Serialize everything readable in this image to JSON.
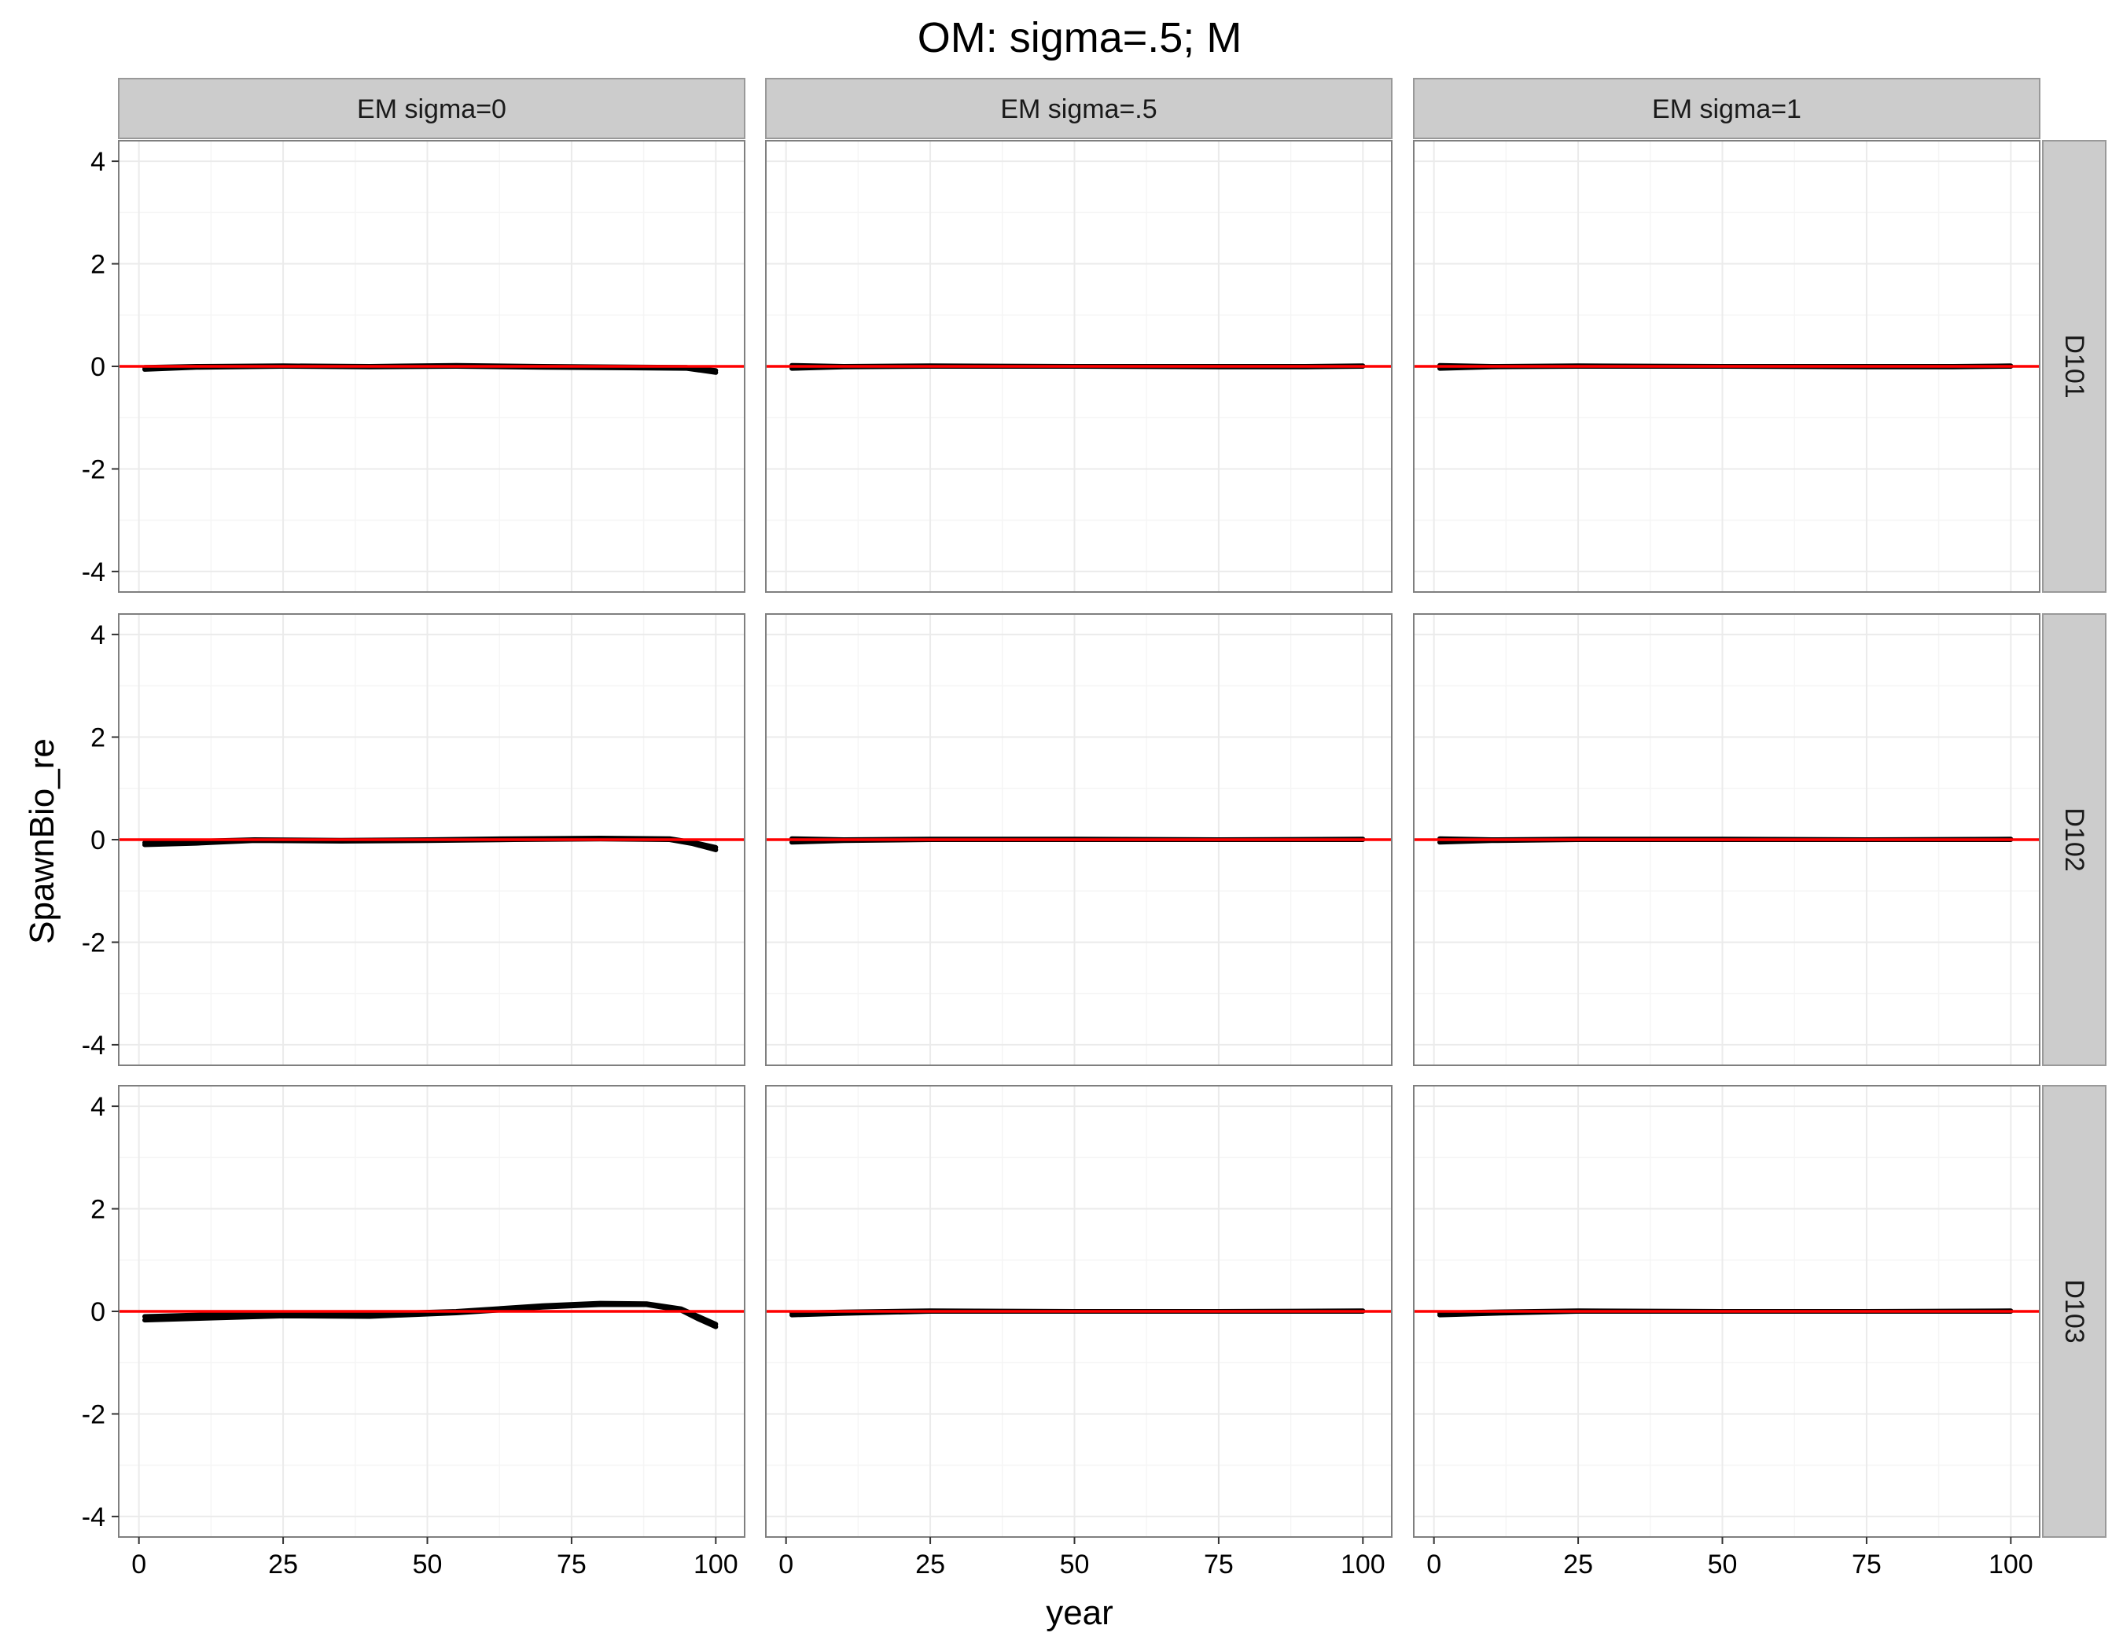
{
  "chart_data": {
    "type": "line",
    "title": "OM: sigma=.5; M",
    "xlabel": "year",
    "ylabel": "SpawnBio_re",
    "xlim": [
      -3.5,
      105
    ],
    "ylim": [
      -4.4,
      4.4
    ],
    "x_ticks": [
      0,
      25,
      50,
      75,
      100
    ],
    "y_ticks": [
      -4,
      -2,
      0,
      2,
      4
    ],
    "x_tick_labels": [
      "0",
      "25",
      "50",
      "75",
      "100"
    ],
    "y_tick_labels": [
      "-4",
      "-2",
      "0",
      "2",
      "4"
    ],
    "col_facets": [
      "EM sigma=0",
      "EM sigma=.5",
      "EM sigma=1"
    ],
    "row_facets": [
      "D101",
      "D102",
      "D103"
    ],
    "grid": true,
    "reference_line": {
      "y": 0,
      "color": "#ff0000"
    },
    "series_color": "#000000",
    "panels": [
      {
        "row": "D101",
        "col": "EM sigma=0",
        "lines": [
          {
            "x": [
              1,
              10,
              25,
              40,
              55,
              70,
              85,
              95,
              100
            ],
            "y": [
              -0.06,
              -0.02,
              0.0,
              -0.01,
              0.0,
              -0.02,
              -0.03,
              -0.04,
              -0.12
            ]
          },
          {
            "x": [
              1,
              10,
              25,
              40,
              55,
              70,
              85,
              95,
              100
            ],
            "y": [
              -0.02,
              0.0,
              0.01,
              0.0,
              0.02,
              0.0,
              -0.01,
              -0.02,
              -0.08
            ]
          }
        ]
      },
      {
        "row": "D101",
        "col": "EM sigma=.5",
        "lines": [
          {
            "x": [
              1,
              10,
              25,
              50,
              75,
              90,
              100
            ],
            "y": [
              -0.04,
              -0.01,
              0.0,
              0.0,
              -0.01,
              -0.01,
              0.0
            ]
          },
          {
            "x": [
              1,
              10,
              25,
              50,
              75,
              90,
              100
            ],
            "y": [
              0.02,
              0.0,
              0.01,
              0.0,
              0.0,
              0.0,
              0.01
            ]
          }
        ]
      },
      {
        "row": "D101",
        "col": "EM sigma=1",
        "lines": [
          {
            "x": [
              1,
              10,
              25,
              50,
              75,
              90,
              100
            ],
            "y": [
              -0.04,
              -0.01,
              0.0,
              0.0,
              -0.01,
              -0.01,
              0.0
            ]
          },
          {
            "x": [
              1,
              10,
              25,
              50,
              75,
              90,
              100
            ],
            "y": [
              0.02,
              0.0,
              0.01,
              0.0,
              0.0,
              0.0,
              0.01
            ]
          }
        ]
      },
      {
        "row": "D102",
        "col": "EM sigma=0",
        "lines": [
          {
            "x": [
              1,
              10,
              20,
              35,
              50,
              65,
              80,
              92,
              96,
              100
            ],
            "y": [
              -0.1,
              -0.07,
              -0.02,
              -0.03,
              -0.02,
              0.0,
              0.01,
              0.0,
              -0.08,
              -0.2
            ]
          },
          {
            "x": [
              1,
              10,
              20,
              35,
              50,
              65,
              80,
              92,
              96,
              100
            ],
            "y": [
              -0.06,
              -0.03,
              0.0,
              -0.01,
              0.0,
              0.02,
              0.03,
              0.02,
              -0.05,
              -0.15
            ]
          }
        ]
      },
      {
        "row": "D102",
        "col": "EM sigma=.5",
        "lines": [
          {
            "x": [
              1,
              10,
              25,
              50,
              75,
              100
            ],
            "y": [
              -0.05,
              -0.02,
              0.0,
              0.0,
              0.0,
              0.0
            ]
          },
          {
            "x": [
              1,
              10,
              25,
              50,
              75,
              100
            ],
            "y": [
              0.02,
              0.0,
              0.01,
              0.01,
              0.0,
              0.01
            ]
          }
        ]
      },
      {
        "row": "D102",
        "col": "EM sigma=1",
        "lines": [
          {
            "x": [
              1,
              10,
              25,
              50,
              75,
              100
            ],
            "y": [
              -0.05,
              -0.02,
              0.0,
              0.0,
              0.0,
              0.0
            ]
          },
          {
            "x": [
              1,
              10,
              25,
              50,
              75,
              100
            ],
            "y": [
              0.02,
              0.0,
              0.01,
              0.01,
              0.0,
              0.01
            ]
          }
        ]
      },
      {
        "row": "D103",
        "col": "EM sigma=0",
        "lines": [
          {
            "x": [
              1,
              10,
              25,
              40,
              55,
              70,
              80,
              88,
              94,
              97,
              100
            ],
            "y": [
              -0.17,
              -0.14,
              -0.09,
              -0.1,
              -0.03,
              0.08,
              0.13,
              0.13,
              0.02,
              -0.15,
              -0.3
            ]
          },
          {
            "x": [
              1,
              10,
              25,
              40,
              55,
              70,
              80,
              88,
              94,
              97,
              100
            ],
            "y": [
              -0.1,
              -0.07,
              -0.04,
              -0.05,
              0.0,
              0.11,
              0.16,
              0.15,
              0.05,
              -0.1,
              -0.25
            ]
          }
        ]
      },
      {
        "row": "D103",
        "col": "EM sigma=.5",
        "lines": [
          {
            "x": [
              1,
              10,
              25,
              50,
              75,
              100
            ],
            "y": [
              -0.07,
              -0.04,
              0.0,
              0.0,
              0.0,
              0.0
            ]
          },
          {
            "x": [
              1,
              10,
              25,
              50,
              75,
              100
            ],
            "y": [
              -0.03,
              -0.01,
              0.01,
              0.0,
              0.0,
              0.01
            ]
          }
        ]
      },
      {
        "row": "D103",
        "col": "EM sigma=1",
        "lines": [
          {
            "x": [
              1,
              10,
              25,
              50,
              75,
              100
            ],
            "y": [
              -0.07,
              -0.04,
              0.0,
              0.0,
              0.0,
              0.0
            ]
          },
          {
            "x": [
              1,
              10,
              25,
              50,
              75,
              100
            ],
            "y": [
              -0.03,
              -0.01,
              0.01,
              0.0,
              0.0,
              0.01
            ]
          }
        ]
      }
    ]
  }
}
